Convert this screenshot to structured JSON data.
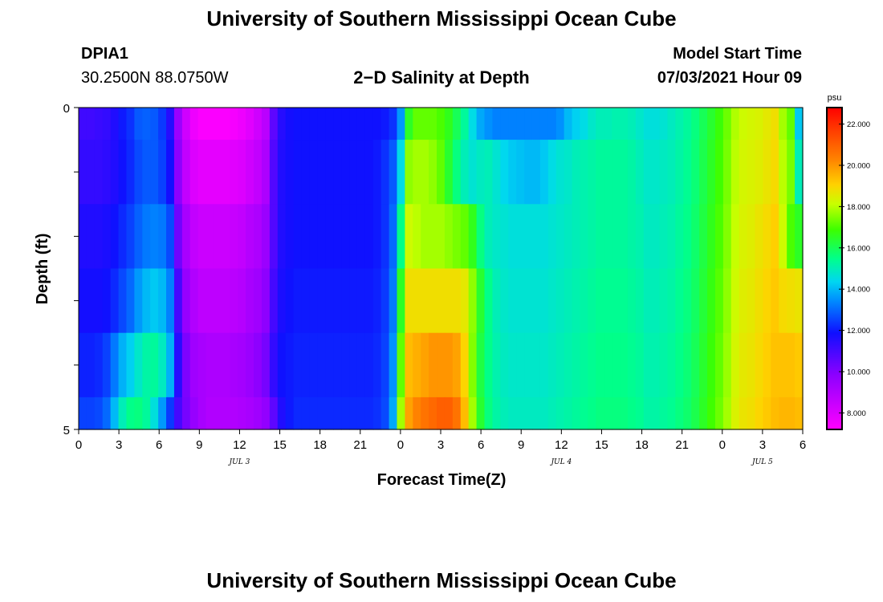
{
  "page": {
    "title_top": "University of Southern Mississippi Ocean Cube",
    "title_bottom": "University of Southern Mississippi Ocean Cube",
    "station": "DPIA1",
    "location": "30.2500N  88.0750W",
    "chart_title": "2−D Salinity at Depth",
    "model_start_label": "Model Start Time",
    "model_start_value": "07/03/2021 Hour 09"
  },
  "chart_data": {
    "type": "heatmap",
    "title": "2-D Salinity at Depth",
    "xlabel": "Forecast Time(Z)",
    "ylabel": "Depth (ft)",
    "x_ticks": [
      "0",
      "3",
      "6",
      "9",
      "12",
      "15",
      "18",
      "21",
      "0",
      "3",
      "6",
      "9",
      "12",
      "15",
      "18",
      "21",
      "0",
      "3",
      "6"
    ],
    "x_hours_range": [
      0,
      54
    ],
    "y_ticks": [
      "0",
      "5"
    ],
    "y_range": [
      0,
      5
    ],
    "day_labels": [
      {
        "text": "JUL 3",
        "hour": 12
      },
      {
        "text": "JUL 4",
        "hour": 36
      },
      {
        "text": "JUL 5",
        "hour": 51
      }
    ],
    "colorbar": {
      "unit": "psu",
      "min": 7.2,
      "max": 22.8,
      "ticks": [
        "8.000",
        "10.000",
        "12.000",
        "14.000",
        "16.000",
        "18.000",
        "20.000",
        "22.000"
      ],
      "tick_values": [
        8,
        10,
        12,
        14,
        16,
        18,
        20,
        22
      ]
    },
    "depth_rows": [
      {
        "depth_range": [
          0,
          0.5
        ],
        "values": [
          11.1,
          11.1,
          11.2,
          11.3,
          11.6,
          12.0,
          12.3,
          12.8,
          12.9,
          12.8,
          12.4,
          11.5,
          9.5,
          8.3,
          7.6,
          7.3,
          7.3,
          7.3,
          7.3,
          7.4,
          7.6,
          7.9,
          8.3,
          8.8,
          10.6,
          11.5,
          11.8,
          11.9,
          11.9,
          11.9,
          11.9,
          11.9,
          11.9,
          11.9,
          11.9,
          11.9,
          11.9,
          11.9,
          12.0,
          12.3,
          13.6,
          16.5,
          17.2,
          17.2,
          17.2,
          17.0,
          16.6,
          16.0,
          15.3,
          14.5,
          13.8,
          13.5,
          13.3,
          13.3,
          13.3,
          13.3,
          13.3,
          13.3,
          13.3,
          13.3,
          13.5,
          14.0,
          14.3,
          14.5,
          14.8,
          15.0,
          15.0,
          15.1,
          15.1,
          15.0,
          14.8,
          14.6,
          14.6,
          14.7,
          14.9,
          15.1,
          15.3,
          15.6,
          16.0,
          16.4,
          16.8,
          17.3,
          17.9,
          18.2,
          18.3,
          18.4,
          18.6,
          18.8,
          17.8,
          17.2,
          14.2
        ]
      },
      {
        "depth_range": [
          0.5,
          1.5
        ],
        "values": [
          11.3,
          11.3,
          11.3,
          11.4,
          11.6,
          11.9,
          12.2,
          12.6,
          12.8,
          12.8,
          12.5,
          11.8,
          9.8,
          8.6,
          8.0,
          7.8,
          7.8,
          7.8,
          7.8,
          7.9,
          8.0,
          8.3,
          8.6,
          9.1,
          10.8,
          11.6,
          11.8,
          11.9,
          11.9,
          11.9,
          11.9,
          11.9,
          11.9,
          11.9,
          11.9,
          11.9,
          11.9,
          12.0,
          12.3,
          12.8,
          14.5,
          17.6,
          17.8,
          17.8,
          17.6,
          17.2,
          16.4,
          15.6,
          15.0,
          14.7,
          14.9,
          15.0,
          14.7,
          14.4,
          14.2,
          14.1,
          14.0,
          14.0,
          14.2,
          14.5,
          14.7,
          14.8,
          15.0,
          15.1,
          15.2,
          15.3,
          15.3,
          15.3,
          15.3,
          15.2,
          15.0,
          14.8,
          14.8,
          14.9,
          15.0,
          15.2,
          15.4,
          15.7,
          16.1,
          16.5,
          16.9,
          17.4,
          18.0,
          18.3,
          18.4,
          18.5,
          18.7,
          18.9,
          18.0,
          17.4,
          15.0
        ]
      },
      {
        "depth_range": [
          1.5,
          2.5
        ],
        "values": [
          11.6,
          11.6,
          11.6,
          11.7,
          11.9,
          12.2,
          12.5,
          12.9,
          13.2,
          13.3,
          13.2,
          12.6,
          10.3,
          9.2,
          8.6,
          8.4,
          8.4,
          8.4,
          8.4,
          8.5,
          8.6,
          8.9,
          9.1,
          9.5,
          10.8,
          11.6,
          11.8,
          11.9,
          11.9,
          11.9,
          11.9,
          11.9,
          11.9,
          11.9,
          11.9,
          11.9,
          11.9,
          12.0,
          12.3,
          13.0,
          15.5,
          18.2,
          18.0,
          17.8,
          17.8,
          17.8,
          17.6,
          17.4,
          17.2,
          16.6,
          15.6,
          15.0,
          14.8,
          14.7,
          14.6,
          14.6,
          14.6,
          14.6,
          14.6,
          14.7,
          14.8,
          14.9,
          15.0,
          15.1,
          15.2,
          15.3,
          15.3,
          15.3,
          15.3,
          15.2,
          15.1,
          14.9,
          14.9,
          15.0,
          15.1,
          15.3,
          15.5,
          15.8,
          16.2,
          16.6,
          17.0,
          17.5,
          18.1,
          18.4,
          18.5,
          18.7,
          18.9,
          19.1,
          18.2,
          17.0,
          16.5
        ]
      },
      {
        "depth_range": [
          2.5,
          3.5
        ],
        "values": [
          11.8,
          11.8,
          11.8,
          11.9,
          12.2,
          12.6,
          13.0,
          13.6,
          14.0,
          14.2,
          14.0,
          13.3,
          11.0,
          9.6,
          9.0,
          8.7,
          8.7,
          8.7,
          8.7,
          8.8,
          8.9,
          9.2,
          9.4,
          9.8,
          11.0,
          11.7,
          11.9,
          12.0,
          12.0,
          12.0,
          12.0,
          12.0,
          12.0,
          12.0,
          12.0,
          12.0,
          12.0,
          12.1,
          12.4,
          13.2,
          16.5,
          18.8,
          18.8,
          18.8,
          18.8,
          18.8,
          18.8,
          18.8,
          18.6,
          17.6,
          16.4,
          15.5,
          15.0,
          14.8,
          14.7,
          14.7,
          14.7,
          14.7,
          14.7,
          14.8,
          14.9,
          15.0,
          15.1,
          15.2,
          15.3,
          15.4,
          15.4,
          15.4,
          15.4,
          15.3,
          15.2,
          15.0,
          15.0,
          15.1,
          15.2,
          15.4,
          15.6,
          15.9,
          16.3,
          16.7,
          17.1,
          17.6,
          18.2,
          18.5,
          18.6,
          18.8,
          19.0,
          19.2,
          18.9,
          18.8,
          18.7
        ]
      },
      {
        "depth_range": [
          3.5,
          4.5
        ],
        "values": [
          12.1,
          12.1,
          12.2,
          12.5,
          13.2,
          13.9,
          14.3,
          14.8,
          15.2,
          15.3,
          14.9,
          13.9,
          11.5,
          10.1,
          9.4,
          9.2,
          9.1,
          9.1,
          9.1,
          9.2,
          9.3,
          9.5,
          9.8,
          10.2,
          11.3,
          11.9,
          12.0,
          12.1,
          12.1,
          12.1,
          12.1,
          12.1,
          12.1,
          12.1,
          12.1,
          12.1,
          12.1,
          12.2,
          12.5,
          13.5,
          17.2,
          19.4,
          19.6,
          19.8,
          20.0,
          20.0,
          20.0,
          19.8,
          19.0,
          17.5,
          16.2,
          15.5,
          15.1,
          14.9,
          14.8,
          14.8,
          14.8,
          14.8,
          14.8,
          14.9,
          15.0,
          15.1,
          15.2,
          15.3,
          15.4,
          15.5,
          15.5,
          15.5,
          15.5,
          15.4,
          15.3,
          15.1,
          15.1,
          15.2,
          15.3,
          15.5,
          15.7,
          16.0,
          16.4,
          16.8,
          17.2,
          17.7,
          18.3,
          18.6,
          18.7,
          18.9,
          19.1,
          19.3,
          19.3,
          19.3,
          19.2
        ]
      },
      {
        "depth_range": [
          4.5,
          5.0
        ],
        "values": [
          12.5,
          12.5,
          12.6,
          13.0,
          14.0,
          15.0,
          15.5,
          15.6,
          15.3,
          14.6,
          13.6,
          12.4,
          11.0,
          10.2,
          9.6,
          9.2,
          9.0,
          9.0,
          9.0,
          9.0,
          9.1,
          9.2,
          9.4,
          9.7,
          10.6,
          11.6,
          12.0,
          12.2,
          12.2,
          12.2,
          12.2,
          12.2,
          12.2,
          12.2,
          12.2,
          12.2,
          12.2,
          12.3,
          12.6,
          13.8,
          17.8,
          19.8,
          20.3,
          20.6,
          20.8,
          21.0,
          21.0,
          20.6,
          19.4,
          17.8,
          16.4,
          15.6,
          15.2,
          15.0,
          14.9,
          14.9,
          14.9,
          14.9,
          14.9,
          15.0,
          15.1,
          15.2,
          15.3,
          15.4,
          15.5,
          15.6,
          15.6,
          15.6,
          15.6,
          15.5,
          15.4,
          15.2,
          15.2,
          15.3,
          15.4,
          15.6,
          15.8,
          16.1,
          16.5,
          16.9,
          17.3,
          17.8,
          18.4,
          18.7,
          18.8,
          19.0,
          19.2,
          19.4,
          19.5,
          19.5,
          19.4
        ]
      }
    ]
  }
}
